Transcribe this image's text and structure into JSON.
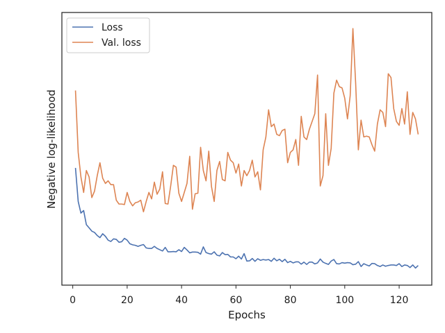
{
  "chart_data": {
    "type": "line",
    "title": "",
    "xlabel": "Epochs",
    "ylabel": "Negative log-likelihood",
    "xlim": [
      -4,
      132
    ],
    "ylim": [
      0,
      100
    ],
    "xticks": [
      0,
      20,
      40,
      60,
      80,
      100,
      120
    ],
    "yticks_shown": false,
    "grid": false,
    "legend_position": "top-left",
    "series": [
      {
        "name": "Loss",
        "color": "#4c72b0",
        "x": [
          1,
          2,
          3,
          4,
          5,
          6,
          7,
          8,
          9,
          10,
          11,
          12,
          13,
          14,
          15,
          16,
          17,
          18,
          19,
          20,
          21,
          22,
          23,
          24,
          25,
          26,
          27,
          28,
          29,
          30,
          31,
          32,
          33,
          34,
          35,
          36,
          37,
          38,
          39,
          40,
          41,
          42,
          43,
          44,
          45,
          46,
          47,
          48,
          49,
          50,
          51,
          52,
          53,
          54,
          55,
          56,
          57,
          58,
          59,
          60,
          61,
          62,
          63,
          64,
          65,
          66,
          67,
          68,
          69,
          70,
          71,
          72,
          73,
          74,
          75,
          76,
          77,
          78,
          79,
          80,
          81,
          82,
          83,
          84,
          85,
          86,
          87,
          88,
          89,
          90,
          91,
          92,
          93,
          94,
          95,
          96,
          97,
          98,
          99,
          100,
          101,
          102,
          103,
          104,
          105,
          106,
          107,
          108,
          109,
          110,
          111,
          112,
          113,
          114,
          115,
          116,
          117,
          118,
          119,
          120,
          121,
          122,
          123,
          124,
          125,
          126,
          127
        ],
        "values": [
          43.0,
          30.0,
          25.5,
          26.5,
          21.0,
          19.8,
          18.5,
          18.0,
          16.8,
          16.0,
          17.5,
          16.5,
          15.0,
          14.5,
          15.5,
          15.3,
          14.2,
          14.4,
          15.7,
          15.0,
          13.6,
          13.2,
          13.0,
          12.6,
          13.0,
          13.3,
          12.0,
          11.8,
          11.8,
          12.6,
          11.8,
          11.3,
          10.8,
          12.2,
          10.5,
          10.5,
          10.6,
          10.5,
          11.3,
          10.6,
          12.2,
          11.2,
          10.1,
          10.4,
          10.4,
          10.3,
          9.6,
          12.4,
          10.2,
          9.8,
          9.6,
          10.5,
          9.2,
          8.9,
          10.2,
          9.4,
          9.5,
          8.5,
          8.5,
          7.8,
          8.8,
          7.7,
          9.8,
          6.9,
          7.0,
          7.9,
          6.8,
          7.8,
          7.2,
          7.5,
          7.3,
          7.5,
          6.8,
          8.0,
          7.0,
          7.6,
          6.7,
          7.6,
          6.3,
          6.8,
          6.2,
          6.6,
          6.6,
          5.7,
          6.5,
          5.6,
          6.5,
          6.5,
          5.8,
          6.2,
          7.7,
          6.5,
          6.0,
          5.6,
          6.9,
          7.5,
          5.9,
          5.8,
          6.3,
          6.1,
          6.3,
          6.2,
          5.5,
          5.7,
          6.7,
          4.8,
          5.9,
          5.4,
          5.0,
          6.0,
          5.9,
          5.2,
          4.8,
          5.4,
          4.9,
          5.2,
          5.4,
          5.4,
          5.2,
          5.9,
          4.8,
          5.4,
          5.2,
          4.4,
          5.4,
          4.2,
          5.2
        ]
      },
      {
        "name": "Val. loss",
        "color": "#dd8452",
        "x": [
          1,
          2,
          3,
          4,
          5,
          6,
          7,
          8,
          9,
          10,
          11,
          12,
          13,
          14,
          15,
          16,
          17,
          18,
          19,
          20,
          21,
          22,
          23,
          24,
          25,
          26,
          27,
          28,
          29,
          30,
          31,
          32,
          33,
          34,
          35,
          36,
          37,
          38,
          39,
          40,
          41,
          42,
          43,
          44,
          45,
          46,
          47,
          48,
          49,
          50,
          51,
          52,
          53,
          54,
          55,
          56,
          57,
          58,
          59,
          60,
          61,
          62,
          63,
          64,
          65,
          66,
          67,
          68,
          69,
          70,
          71,
          72,
          73,
          74,
          75,
          76,
          77,
          78,
          79,
          80,
          81,
          82,
          83,
          84,
          85,
          86,
          87,
          88,
          89,
          90,
          91,
          92,
          93,
          94,
          95,
          96,
          97,
          98,
          99,
          100,
          101,
          102,
          103,
          104,
          105,
          106,
          107,
          108,
          109,
          110,
          111,
          112,
          113,
          114,
          115,
          116,
          117,
          118,
          119,
          120,
          121,
          122,
          123,
          124,
          125,
          126,
          127
        ],
        "values": [
          73.0,
          49.0,
          39.5,
          33.5,
          42.0,
          39.5,
          31.5,
          34.0,
          40.0,
          45.0,
          39.0,
          37.0,
          38.0,
          36.5,
          36.5,
          30.5,
          29.0,
          29.0,
          28.8,
          33.5,
          30.0,
          28.3,
          29.5,
          29.8,
          30.5,
          26.0,
          30.0,
          33.5,
          31.0,
          37.5,
          32.8,
          34.8,
          41.5,
          29.2,
          29.0,
          36.0,
          44.0,
          43.3,
          33.2,
          30.0,
          33.5,
          37.0,
          47.5,
          27.0,
          33.0,
          33.2,
          51.0,
          42.0,
          38.0,
          49.5,
          35.8,
          30.0,
          42.0,
          45.5,
          38.5,
          38.0,
          49.0,
          46.0,
          45.0,
          41.0,
          44.5,
          36.0,
          42.0,
          40.0,
          42.0,
          46.0,
          39.5,
          41.5,
          34.5,
          50.0,
          55.0,
          65.5,
          59.0,
          60.0,
          56.0,
          55.5,
          57.5,
          58.0,
          45.0,
          49.0,
          50.0,
          54.0,
          44.0,
          63.0,
          55.0,
          54.0,
          58.0,
          61.0,
          64.0,
          79.0,
          36.0,
          40.0,
          64.0,
          44.0,
          50.5,
          72.0,
          77.0,
          74.5,
          74.0,
          70.0,
          62.0,
          71.0,
          97.0,
          76.0,
          50.0,
          61.5,
          55.0,
          55.3,
          55.0,
          52.0,
          49.5,
          60.0,
          65.5,
          64.5,
          59.0,
          79.5,
          78.0,
          66.0,
          61.0,
          59.5,
          66.0,
          60.0,
          72.5,
          56.0,
          64.5,
          62.0,
          56.0
        ]
      }
    ]
  }
}
